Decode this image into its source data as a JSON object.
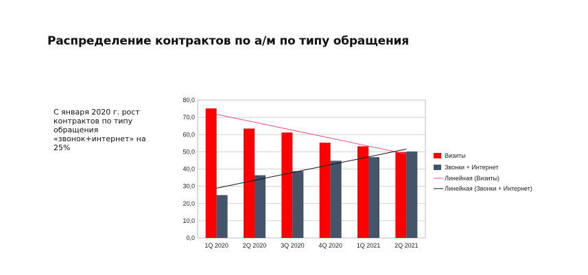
{
  "slide": {
    "title": "Распределение контрактов по а/м по типу обращения",
    "note_lines": [
      "С января 2020 г. рост",
      "контрактов по типу",
      "обращения",
      "«звонок+интернет» на",
      "25%"
    ]
  },
  "colors": {
    "visits": "#ff0000",
    "calls_internet": "#44546a",
    "trend_visits": "#e8557a",
    "trend_calls": "#111111",
    "grid": "#d0d0d0"
  },
  "chart_data": {
    "type": "bar",
    "categories": [
      "1Q 2020",
      "2Q 2020",
      "3Q 2020",
      "4Q 2020",
      "1Q 2021",
      "2Q 2021"
    ],
    "series": [
      {
        "name": "Визиты",
        "values": [
          75.2,
          63.5,
          61.2,
          55.3,
          53.2,
          49.8
        ]
      },
      {
        "name": "Звонки + Интернет",
        "values": [
          24.9,
          36.4,
          38.8,
          44.8,
          46.9,
          50.2
        ]
      }
    ],
    "trendlines": [
      {
        "name": "Линейная (Визиты)",
        "start": 71.8,
        "end": 48.7
      },
      {
        "name": "Линейная (Звонки + Интернет)",
        "start": 28.9,
        "end": 51.6
      }
    ],
    "yticks": [
      "0,0",
      "10,0",
      "20,0",
      "30,0",
      "40,0",
      "50,0",
      "60,0",
      "70,0",
      "80,0"
    ],
    "ylim": [
      0,
      80
    ],
    "grid": true,
    "legend": "right"
  }
}
